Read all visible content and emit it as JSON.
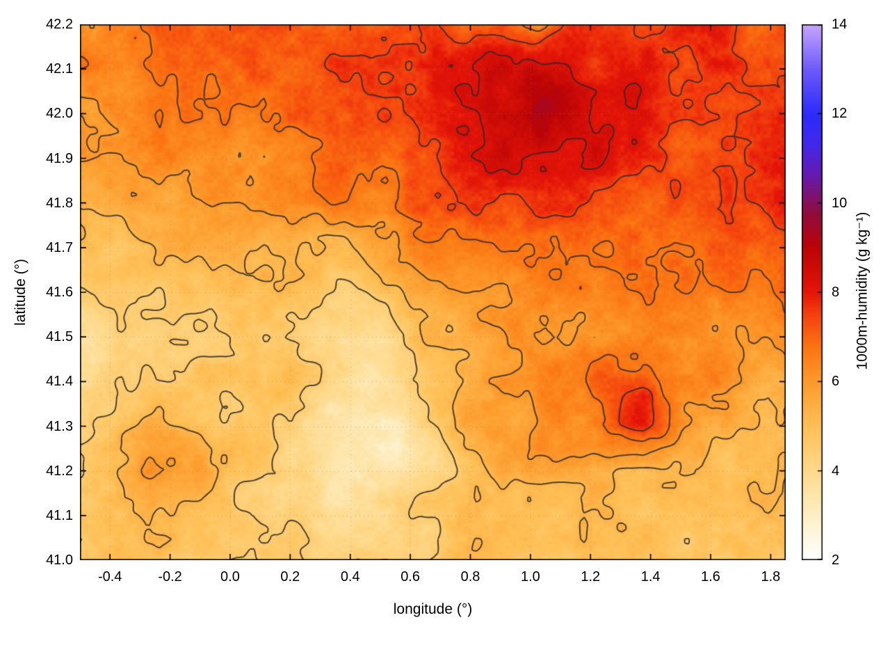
{
  "figure": {
    "background": "#ffffff",
    "plot_border_color": "#000000"
  },
  "chart_data": {
    "type": "heatmap",
    "title": "",
    "xlabel": "longitude (°)",
    "ylabel": "latitude (°)",
    "xlim": [
      -0.5,
      1.85
    ],
    "ylim": [
      41.0,
      42.2
    ],
    "xticks": [
      -0.4,
      -0.2,
      0.0,
      0.2,
      0.4,
      0.6,
      0.8,
      1.0,
      1.2,
      1.4,
      1.6,
      1.8
    ],
    "yticks": [
      41.0,
      41.1,
      41.2,
      41.3,
      41.4,
      41.5,
      41.6,
      41.7,
      41.8,
      41.9,
      42.0,
      42.1,
      42.2
    ],
    "grid_lines": {
      "show": true,
      "style": "dotted"
    },
    "colorbar": {
      "label": "1000m-humidity (g kg⁻¹)",
      "min": 2,
      "max": 14,
      "ticks": [
        2,
        4,
        6,
        8,
        10,
        12,
        14
      ]
    },
    "palette": [
      [
        2.0,
        "#ffffff"
      ],
      [
        2.8,
        "#fdf3d0"
      ],
      [
        4.0,
        "#fed98a"
      ],
      [
        5.0,
        "#ffbf55"
      ],
      [
        6.0,
        "#fd9a2b"
      ],
      [
        6.8,
        "#fb7311"
      ],
      [
        7.5,
        "#f4400d"
      ],
      [
        8.0,
        "#e41508"
      ],
      [
        9.0,
        "#bb0406"
      ],
      [
        9.8,
        "#8e0d3f"
      ],
      [
        10.6,
        "#661aab"
      ],
      [
        11.3,
        "#4328e8"
      ],
      [
        12.0,
        "#2b2bfb"
      ],
      [
        13.0,
        "#6f5afa"
      ],
      [
        14.0,
        "#c6a6fd"
      ]
    ],
    "contour_levels": [
      4.5,
      5.25,
      6.0,
      6.75,
      7.5,
      8.25
    ],
    "contour_color": "#2a2a2a",
    "grid": {
      "note": "approximate humidity field (g/kg), rows ordered north (42.2) to south (41.0), columns west (-0.5) to east (1.85)",
      "nx": 21,
      "ny": 13,
      "lats": [
        42.2,
        42.1,
        42.0,
        41.9,
        41.8,
        41.7,
        41.6,
        41.5,
        41.4,
        41.3,
        41.2,
        41.1,
        41.0
      ],
      "lons": [
        -0.5,
        -0.3825,
        -0.265,
        -0.1475,
        -0.03,
        0.0875,
        0.205,
        0.3225,
        0.44,
        0.5575,
        0.675,
        0.7925,
        0.91,
        1.0275,
        1.145,
        1.2625,
        1.38,
        1.4975,
        1.615,
        1.7325,
        1.85
      ],
      "values": [
        [
          6.5,
          6.6,
          6.8,
          6.9,
          7.0,
          7.0,
          7.1,
          7.0,
          7.2,
          7.4,
          7.8,
          7.2,
          7.8,
          6.3,
          7.5,
          7.9,
          7.4,
          7.6,
          7.8,
          6.5,
          7.4
        ],
        [
          6.4,
          6.5,
          6.6,
          6.7,
          6.8,
          6.9,
          7.0,
          7.1,
          7.3,
          7.2,
          7.6,
          7.9,
          8.3,
          8.5,
          8.2,
          7.9,
          7.7,
          7.8,
          7.6,
          7.5,
          7.7
        ],
        [
          6.2,
          6.3,
          6.4,
          6.5,
          6.5,
          6.6,
          6.8,
          7.0,
          7.2,
          7.4,
          7.6,
          8.0,
          8.8,
          9.2,
          8.6,
          8.1,
          7.9,
          7.7,
          7.8,
          7.6,
          7.9
        ],
        [
          6.0,
          6.1,
          6.2,
          6.3,
          6.4,
          6.5,
          6.6,
          6.8,
          7.0,
          7.2,
          7.5,
          8.0,
          8.6,
          8.3,
          8.0,
          7.8,
          7.6,
          7.5,
          7.4,
          7.5,
          7.7
        ],
        [
          5.6,
          5.7,
          5.9,
          6.0,
          6.1,
          6.2,
          6.3,
          6.4,
          6.6,
          6.9,
          7.1,
          7.4,
          7.6,
          7.5,
          7.4,
          7.2,
          7.1,
          7.0,
          7.1,
          7.3,
          7.8
        ],
        [
          4.9,
          5.0,
          5.3,
          5.5,
          5.6,
          5.7,
          5.6,
          5.5,
          5.7,
          6.0,
          6.4,
          6.7,
          6.9,
          7.0,
          7.1,
          7.0,
          6.9,
          6.8,
          6.9,
          7.0,
          7.6
        ],
        [
          4.2,
          4.3,
          4.6,
          4.9,
          5.0,
          4.9,
          4.7,
          4.6,
          4.5,
          4.8,
          5.4,
          5.9,
          6.2,
          6.3,
          6.4,
          6.5,
          6.5,
          6.4,
          6.3,
          6.5,
          7.0
        ],
        [
          3.9,
          4.0,
          4.1,
          4.3,
          4.4,
          4.2,
          3.9,
          3.7,
          3.8,
          4.3,
          4.9,
          5.4,
          5.8,
          6.0,
          6.1,
          6.3,
          6.5,
          6.4,
          6.2,
          6.1,
          6.4
        ],
        [
          4.2,
          4.3,
          4.4,
          4.5,
          4.6,
          4.8,
          5.0,
          4.1,
          3.6,
          4.0,
          4.9,
          5.6,
          6.3,
          6.5,
          6.4,
          7.0,
          7.4,
          6.6,
          6.3,
          5.8,
          5.6
        ],
        [
          4.6,
          4.8,
          5.6,
          5.2,
          4.7,
          4.6,
          4.3,
          3.8,
          3.4,
          3.2,
          4.6,
          5.7,
          6.0,
          6.1,
          6.3,
          7.2,
          7.8,
          6.2,
          5.6,
          5.4,
          5.2
        ],
        [
          4.9,
          5.2,
          6.2,
          5.8,
          4.8,
          4.4,
          4.1,
          4.0,
          3.7,
          3.5,
          4.1,
          5.2,
          5.6,
          5.6,
          5.5,
          5.4,
          5.3,
          5.2,
          5.1,
          5.0,
          5.0
        ],
        [
          4.9,
          5.0,
          5.2,
          4.9,
          4.6,
          4.4,
          4.2,
          4.0,
          3.9,
          4.2,
          4.6,
          4.9,
          5.1,
          5.2,
          5.1,
          5.0,
          5.0,
          4.9,
          4.9,
          4.8,
          4.8
        ],
        [
          5.0,
          5.0,
          4.9,
          4.8,
          4.6,
          4.5,
          4.4,
          4.3,
          4.4,
          4.6,
          4.8,
          5.0,
          5.1,
          5.1,
          5.0,
          5.0,
          4.9,
          4.9,
          4.8,
          4.8,
          4.7
        ]
      ]
    }
  }
}
